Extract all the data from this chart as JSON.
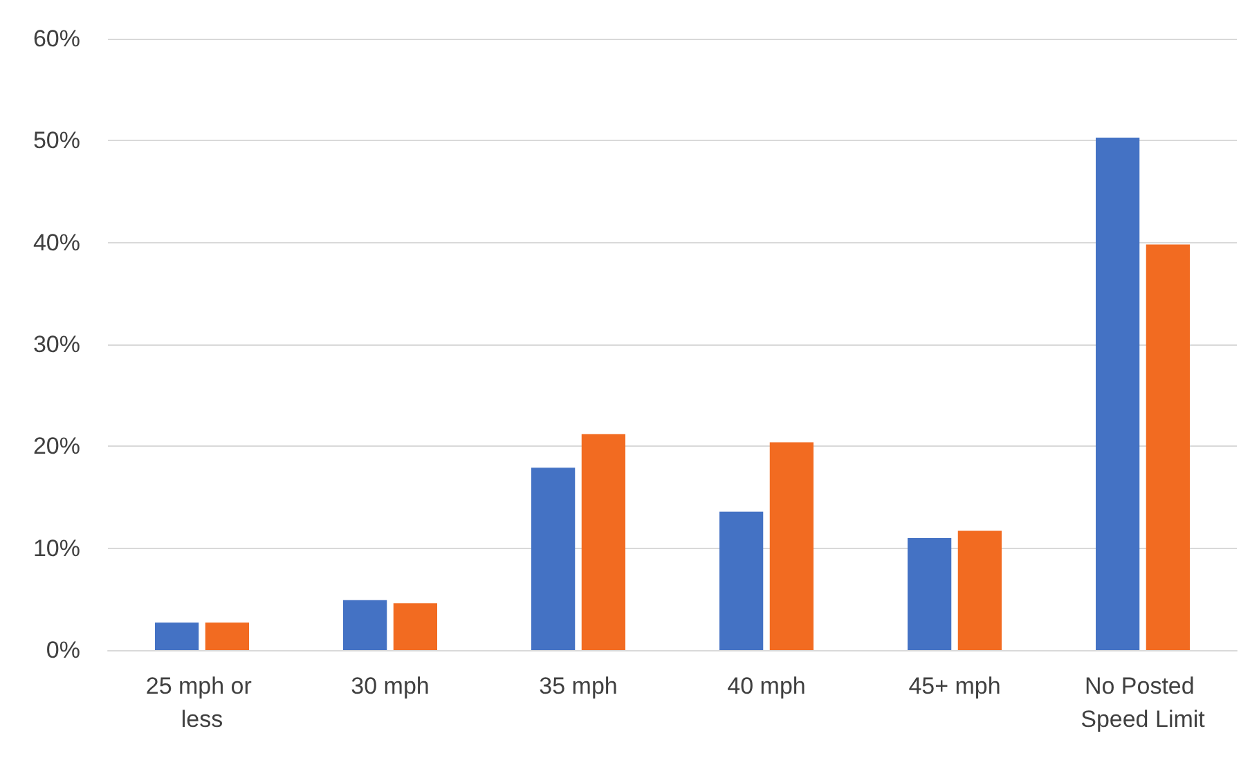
{
  "chart_data": {
    "type": "bar",
    "categories": [
      "25 mph or less",
      "30 mph",
      "35 mph",
      "40 mph",
      "45+ mph",
      "No Posted Speed Limit"
    ],
    "series": [
      {
        "color": "#4472c4",
        "values": [
          2.7,
          4.9,
          17.9,
          13.6,
          11.0,
          50.3
        ]
      },
      {
        "color": "#f26b21",
        "values": [
          2.7,
          4.6,
          21.2,
          20.4,
          11.7,
          39.8
        ]
      }
    ],
    "ylim": [
      0,
      60
    ],
    "yticks": [
      {
        "value": 0,
        "label": "0%"
      },
      {
        "value": 10,
        "label": "10%"
      },
      {
        "value": 20,
        "label": "20%"
      },
      {
        "value": 30,
        "label": "30%"
      },
      {
        "value": 40,
        "label": "40%"
      },
      {
        "value": 50,
        "label": "50%"
      },
      {
        "value": 60,
        "label": "60%"
      }
    ],
    "grid": "y"
  }
}
